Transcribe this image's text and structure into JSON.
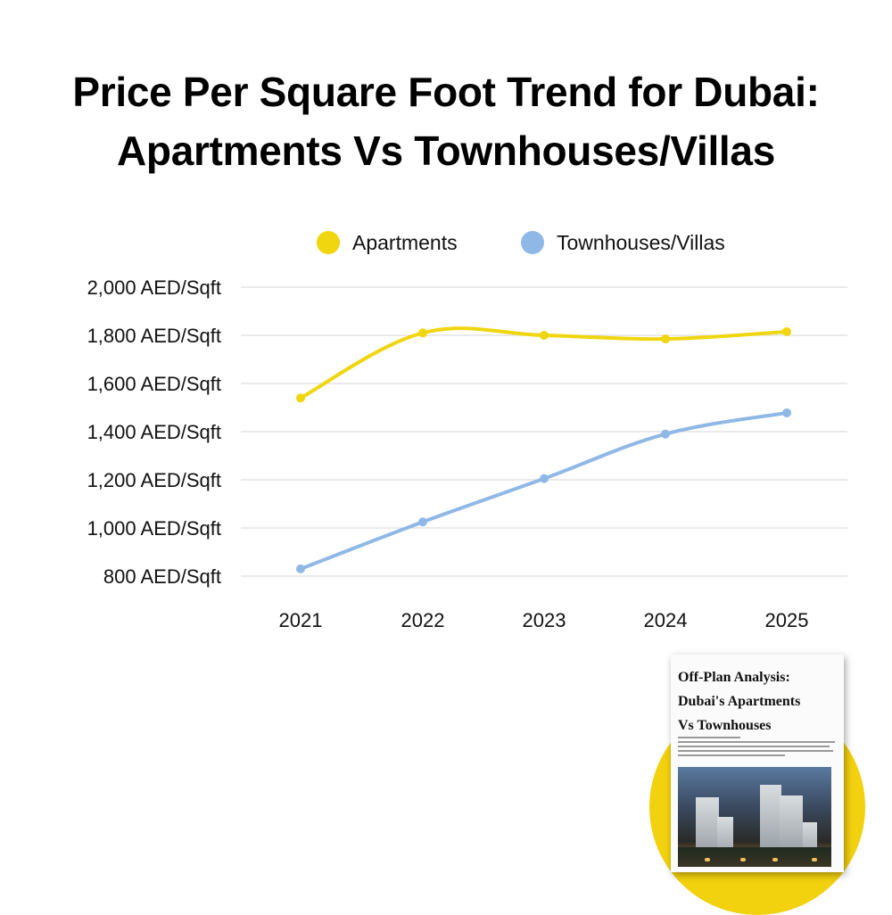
{
  "page": {
    "title_line1": "Price Per Square Foot Trend for Dubai:",
    "title_line2": "Apartments Vs Townhouses/Villas"
  },
  "legend": [
    {
      "label": "Apartments",
      "color": "#f0d60f"
    },
    {
      "label": "Townhouses/Villas",
      "color": "#8fb8e6"
    }
  ],
  "chart_data": {
    "type": "line",
    "title": "Price Per Square Foot Trend for Dubai: Apartments Vs Townhouses/Villas",
    "categories": [
      "2021",
      "2022",
      "2023",
      "2024",
      "2025"
    ],
    "series": [
      {
        "name": "Apartments",
        "color": "#f0d60f",
        "values": [
          1540,
          1810,
          1800,
          1785,
          1815
        ]
      },
      {
        "name": "Townhouses/Villas",
        "color": "#8fb8e6",
        "values": [
          830,
          1025,
          1205,
          1390,
          1478
        ]
      }
    ],
    "ylim": [
      800,
      2000
    ],
    "yticks": [
      2000,
      1800,
      1600,
      1400,
      1200,
      1000,
      800
    ],
    "ytick_labels": [
      "2,000 AED/Sqft",
      "1,800 AED/Sqft",
      "1,600 AED/Sqft",
      "1,400 AED/Sqft",
      "1,200 AED/Sqft",
      "1,000 AED/Sqft",
      "800 AED/Sqft"
    ],
    "grid": true,
    "legend_position": "top"
  },
  "promo": {
    "book_title_line1": "Off-Plan Analysis:",
    "book_title_line2": "Dubai's Apartments",
    "book_title_line3": "Vs Townhouses",
    "circle_color": "#f2d10f"
  }
}
